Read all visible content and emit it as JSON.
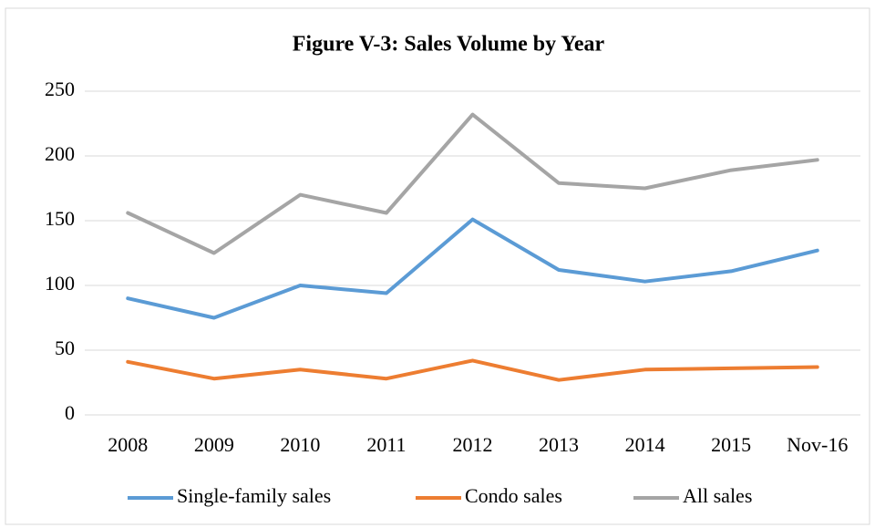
{
  "chart_data": {
    "type": "line",
    "title": "Figure V-3: Sales Volume by Year",
    "categories": [
      "2008",
      "2009",
      "2010",
      "2011",
      "2012",
      "2013",
      "2014",
      "2015",
      "Nov-16"
    ],
    "series": [
      {
        "name": "Single-family sales",
        "color": "#5b9bd5",
        "values": [
          90,
          75,
          100,
          94,
          151,
          112,
          103,
          111,
          127
        ]
      },
      {
        "name": "Condo sales",
        "color": "#ed7d31",
        "values": [
          41,
          28,
          35,
          28,
          42,
          27,
          35,
          36,
          37
        ]
      },
      {
        "name": "All sales",
        "color": "#a5a5a5",
        "values": [
          156,
          125,
          170,
          156,
          232,
          179,
          175,
          189,
          197
        ]
      }
    ],
    "ylim": [
      0,
      250
    ],
    "yticks": [
      0,
      50,
      100,
      150,
      200,
      250
    ],
    "grid": true,
    "legend": "bottom"
  }
}
